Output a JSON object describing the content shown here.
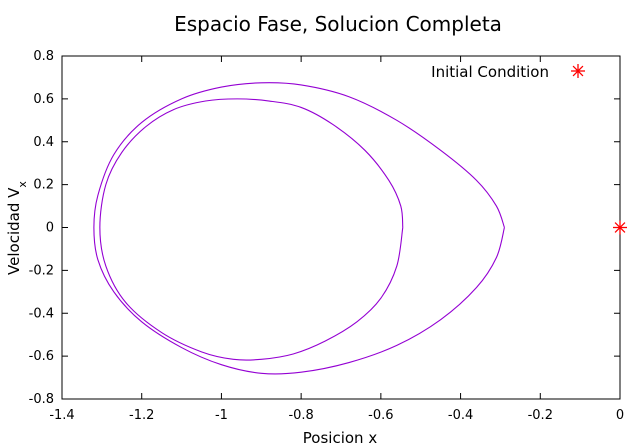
{
  "chart_data": {
    "type": "line",
    "title": "Espacio Fase, Solucion Completa",
    "xlabel": "Posicion x",
    "ylabel": {
      "base": "Velocidad V",
      "sub": "x"
    },
    "xlim": [
      -1.4,
      0
    ],
    "ylim": [
      -0.8,
      0.8
    ],
    "xticks": [
      -1.4,
      -1.2,
      -1,
      -0.8,
      -0.6,
      -0.4,
      -0.2,
      0
    ],
    "xtick_labels": [
      "-1.4",
      "-1.2",
      "-1",
      "-0.8",
      "-0.6",
      "-0.4",
      "-0.2",
      "0"
    ],
    "yticks": [
      -0.8,
      -0.6,
      -0.4,
      -0.2,
      0,
      0.2,
      0.4,
      0.6,
      0.8
    ],
    "ytick_labels": [
      "-0.8",
      "-0.6",
      "-0.4",
      "-0.2",
      "0",
      "0.2",
      "0.4",
      "0.6",
      "0.8"
    ],
    "grid": false,
    "legend_position": "top-right",
    "series": [
      {
        "kind": "line",
        "color": "#9400d3",
        "outer_loop": [
          [
            -0.29,
            0.0
          ],
          [
            -0.31,
            0.1
          ],
          [
            -0.36,
            0.22
          ],
          [
            -0.45,
            0.36
          ],
          [
            -0.56,
            0.5
          ],
          [
            -0.68,
            0.61
          ],
          [
            -0.8,
            0.665
          ],
          [
            -0.9,
            0.675
          ],
          [
            -1.0,
            0.655
          ],
          [
            -1.1,
            0.6
          ],
          [
            -1.2,
            0.49
          ],
          [
            -1.27,
            0.34
          ],
          [
            -1.31,
            0.15
          ],
          [
            -1.32,
            0.0
          ],
          [
            -1.31,
            -0.15
          ],
          [
            -1.27,
            -0.3
          ],
          [
            -1.2,
            -0.44
          ],
          [
            -1.1,
            -0.56
          ],
          [
            -1.0,
            -0.64
          ],
          [
            -0.9,
            -0.68
          ],
          [
            -0.8,
            -0.675
          ],
          [
            -0.68,
            -0.63
          ],
          [
            -0.56,
            -0.55
          ],
          [
            -0.45,
            -0.43
          ],
          [
            -0.36,
            -0.28
          ],
          [
            -0.31,
            -0.14
          ],
          [
            -0.29,
            0.0
          ]
        ],
        "inner_loop": [
          [
            -0.545,
            0.0
          ],
          [
            -0.55,
            0.1
          ],
          [
            -0.58,
            0.22
          ],
          [
            -0.64,
            0.36
          ],
          [
            -0.72,
            0.48
          ],
          [
            -0.8,
            0.56
          ],
          [
            -0.88,
            0.59
          ],
          [
            -0.96,
            0.6
          ],
          [
            -1.04,
            0.59
          ],
          [
            -1.12,
            0.55
          ],
          [
            -1.19,
            0.47
          ],
          [
            -1.25,
            0.35
          ],
          [
            -1.29,
            0.2
          ],
          [
            -1.305,
            0.0
          ],
          [
            -1.29,
            -0.18
          ],
          [
            -1.24,
            -0.35
          ],
          [
            -1.15,
            -0.49
          ],
          [
            -1.05,
            -0.58
          ],
          [
            -0.97,
            -0.615
          ],
          [
            -0.9,
            -0.615
          ],
          [
            -0.82,
            -0.59
          ],
          [
            -0.74,
            -0.53
          ],
          [
            -0.66,
            -0.44
          ],
          [
            -0.6,
            -0.33
          ],
          [
            -0.56,
            -0.18
          ],
          [
            -0.545,
            0.0
          ]
        ]
      },
      {
        "kind": "point",
        "name": "Initial Condition",
        "color": "#ff0000",
        "points": [
          [
            0,
            0
          ]
        ]
      }
    ]
  }
}
